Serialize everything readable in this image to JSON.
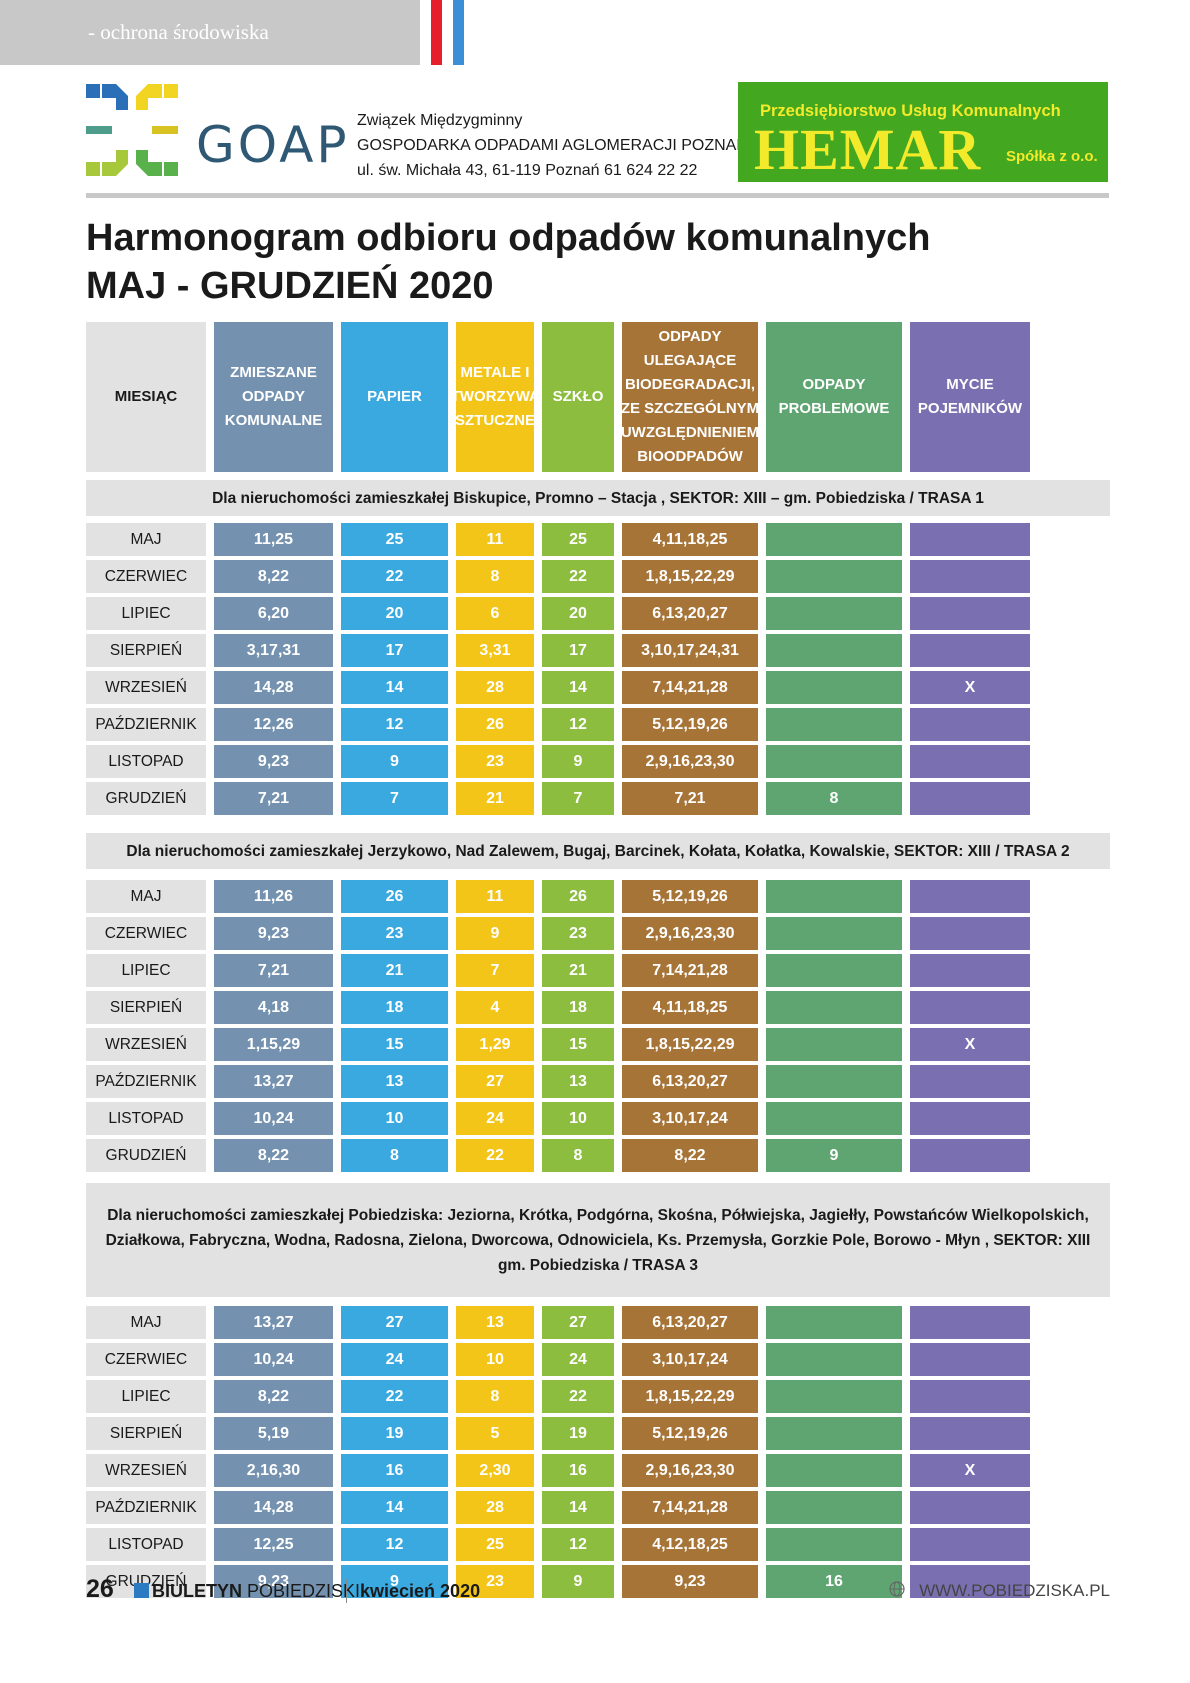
{
  "header": {
    "section_label": "- ochrona środowiska",
    "flag_colors": [
      "#ffffff",
      "#e5202a",
      "#ffffff",
      "#3a8fd6"
    ]
  },
  "goap": {
    "logo_text": "GOAP",
    "line1": "Związek Międzygminny",
    "line2": "GOSPODARKA ODPADAMI AGLOMERACJI POZNAŃSKIEJ",
    "line3": "ul. św. Michała 43, 61-119 Poznań   61 624 22 22"
  },
  "hemar": {
    "top": "Przedsiębiorstwo Usług Komunalnych",
    "name": "HEMAR",
    "suffix": "Spółka z o.o."
  },
  "title": {
    "line1": "Harmonogram odbioru odpadów komunalnych",
    "line2": "MAJ - GRUDZIEŃ 2020"
  },
  "columns": [
    {
      "label": "MIESIĄC",
      "color": "#e2e2e2"
    },
    {
      "label": "ZMIESZANE ODPADY KOMUNALNE",
      "color": "#7492af"
    },
    {
      "label": "PAPIER",
      "color": "#3aa9e0"
    },
    {
      "label": "METALE I TWORZYWA SZTUCZNE",
      "color": "#f4c519"
    },
    {
      "label": "SZKŁO",
      "color": "#8cbd3f"
    },
    {
      "label": "ODPADY ULEGAJĄCE BIODEGRADACJI, ZE SZCZEGÓLNYM UWZGLĘDNIENIEM BIOODPADÓW",
      "color": "#a77438"
    },
    {
      "label": "ODPADY PROBLEMOWE",
      "color": "#5ea572"
    },
    {
      "label": "MYCIE POJEMNIKÓW",
      "color": "#7a6fb0"
    }
  ],
  "sections": [
    {
      "title": "Dla nieruchomości zamieszkałej Biskupice, Promno – Stacja , SEKTOR: XIII – gm. Pobiedziska / TRASA 1",
      "rows": [
        [
          "MAJ",
          "11,25",
          "25",
          "11",
          "25",
          "4,11,18,25",
          "",
          ""
        ],
        [
          "CZERWIEC",
          "8,22",
          "22",
          "8",
          "22",
          "1,8,15,22,29",
          "",
          ""
        ],
        [
          "LIPIEC",
          "6,20",
          "20",
          "6",
          "20",
          "6,13,20,27",
          "",
          ""
        ],
        [
          "SIERPIEŃ",
          "3,17,31",
          "17",
          "3,31",
          "17",
          "3,10,17,24,31",
          "",
          ""
        ],
        [
          "WRZESIEŃ",
          "14,28",
          "14",
          "28",
          "14",
          "7,14,21,28",
          "",
          "X"
        ],
        [
          "PAŹDZIERNIK",
          "12,26",
          "12",
          "26",
          "12",
          "5,12,19,26",
          "",
          ""
        ],
        [
          "LISTOPAD",
          "9,23",
          "9",
          "23",
          "9",
          "2,9,16,23,30",
          "",
          ""
        ],
        [
          "GRUDZIEŃ",
          "7,21",
          "7",
          "21",
          "7",
          "7,21",
          "8",
          ""
        ]
      ]
    },
    {
      "title": "Dla nieruchomości zamieszkałej Jerzykowo, Nad Zalewem, Bugaj, Barcinek, Kołata, Kołatka, Kowalskie, SEKTOR: XIII / TRASA 2",
      "rows": [
        [
          "MAJ",
          "11,26",
          "26",
          "11",
          "26",
          "5,12,19,26",
          "",
          ""
        ],
        [
          "CZERWIEC",
          "9,23",
          "23",
          "9",
          "23",
          "2,9,16,23,30",
          "",
          ""
        ],
        [
          "LIPIEC",
          "7,21",
          "21",
          "7",
          "21",
          "7,14,21,28",
          "",
          ""
        ],
        [
          "SIERPIEŃ",
          "4,18",
          "18",
          "4",
          "18",
          "4,11,18,25",
          "",
          ""
        ],
        [
          "WRZESIEŃ",
          "1,15,29",
          "15",
          "1,29",
          "15",
          "1,8,15,22,29",
          "",
          "X"
        ],
        [
          "PAŹDZIERNIK",
          "13,27",
          "13",
          "27",
          "13",
          "6,13,20,27",
          "",
          ""
        ],
        [
          "LISTOPAD",
          "10,24",
          "10",
          "24",
          "10",
          "3,10,17,24",
          "",
          ""
        ],
        [
          "GRUDZIEŃ",
          "8,22",
          "8",
          "22",
          "8",
          "8,22",
          "9",
          ""
        ]
      ]
    },
    {
      "title": "Dla nieruchomości zamieszkałej Pobiedziska: Jeziorna, Krótka, Podgórna, Skośna, Półwiejska, Jagiełły, Powstańców Wielkopolskich, Działkowa, Fabryczna, Wodna, Radosna, Zielona, Dworcowa, Odnowiciela, Ks. Przemysła, Gorzkie Pole, Borowo - Młyn  , SEKTOR: XIII gm. Pobiedziska / TRASA 3",
      "rows": [
        [
          "MAJ",
          "13,27",
          "27",
          "13",
          "27",
          "6,13,20,27",
          "",
          ""
        ],
        [
          "CZERWIEC",
          "10,24",
          "24",
          "10",
          "24",
          "3,10,17,24",
          "",
          ""
        ],
        [
          "LIPIEC",
          "8,22",
          "22",
          "8",
          "22",
          "1,8,15,22,29",
          "",
          ""
        ],
        [
          "SIERPIEŃ",
          "5,19",
          "19",
          "5",
          "19",
          "5,12,19,26",
          "",
          ""
        ],
        [
          "WRZESIEŃ",
          "2,16,30",
          "16",
          "2,30",
          "16",
          "2,9,16,23,30",
          "",
          "X"
        ],
        [
          "PAŹDZIERNIK",
          "14,28",
          "14",
          "28",
          "14",
          "7,14,21,28",
          "",
          ""
        ],
        [
          "LISTOPAD",
          "12,25",
          "12",
          "25",
          "12",
          "4,12,18,25",
          "",
          ""
        ],
        [
          "GRUDZIEŃ",
          "9,23",
          "9",
          "23",
          "9",
          "9,23",
          "16",
          ""
        ]
      ]
    }
  ],
  "footer": {
    "page_number": "26",
    "publication_bold": "BIULETYN",
    "publication_rest": "POBIEDZISKI",
    "date": "kwiecień 2020",
    "url": "WWW.POBIEDZISKA.PL"
  }
}
